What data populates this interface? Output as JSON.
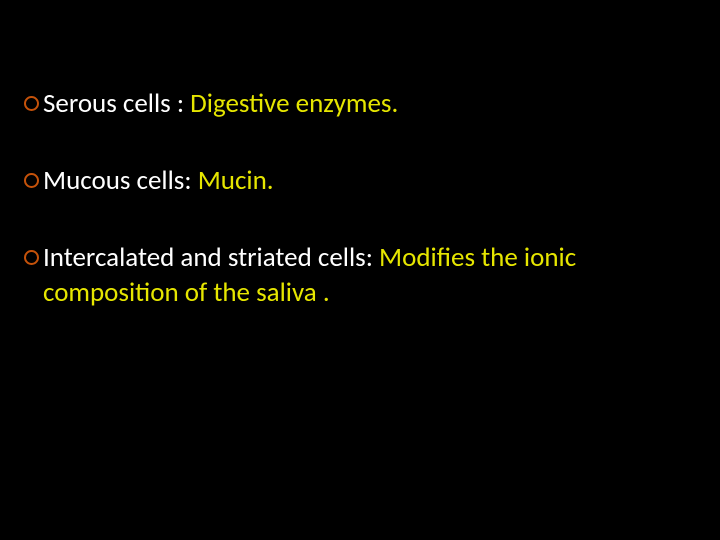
{
  "slide": {
    "background_color": "#000000",
    "text_color_primary": "#ffffff",
    "text_color_highlight": "#e6e600",
    "bullet_ring_color": "#c5520a",
    "font_size_pt": 27,
    "bullets": [
      {
        "parts": [
          {
            "text": "Serous cells : ",
            "color": "white"
          },
          {
            "text": "Digestive enzymes.",
            "color": "yellow"
          }
        ]
      },
      {
        "parts": [
          {
            "text": "Mucous cells: ",
            "color": "white"
          },
          {
            "text": "Mucin.",
            "color": "yellow"
          }
        ]
      },
      {
        "parts": [
          {
            "text": "Intercalated and striated cells: ",
            "color": "white"
          },
          {
            "text": "Modifies the ionic composition of the saliva .",
            "color": "yellow"
          }
        ]
      }
    ]
  }
}
